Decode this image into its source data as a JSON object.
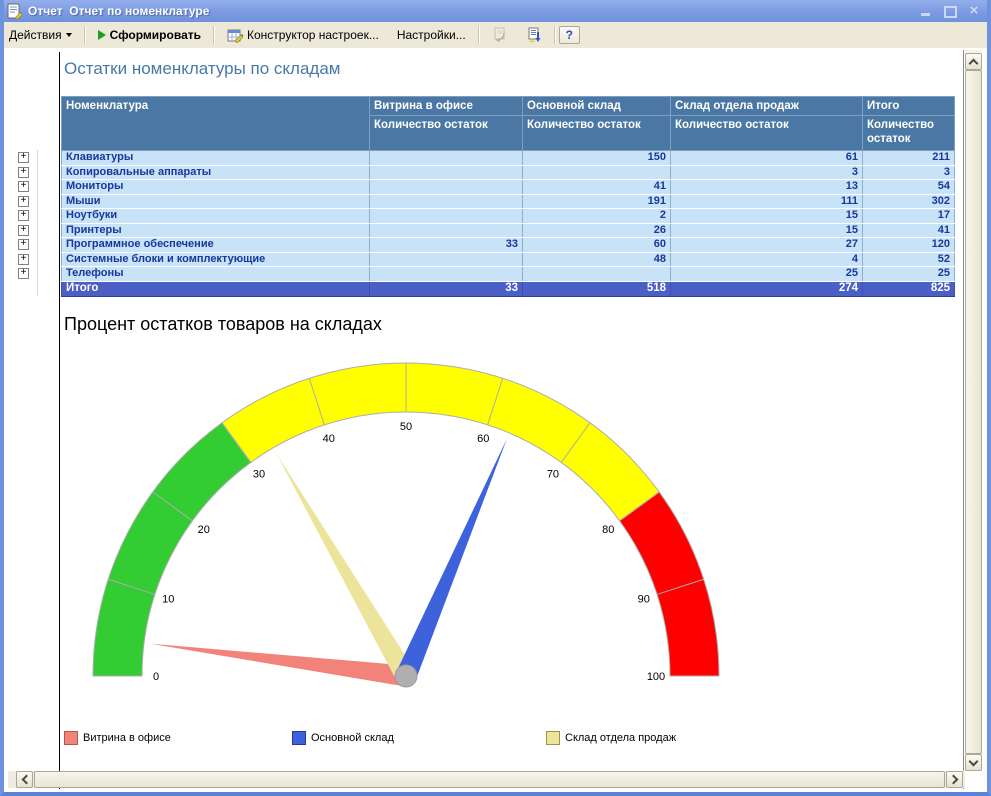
{
  "window": {
    "title": "Отчет  Отчет по номенклатуре"
  },
  "toolbar": {
    "actions_label": "Действия",
    "generate_label": "Сформировать",
    "constructor_label": "Конструктор настроек...",
    "settings_label": "Настройки...",
    "help_label": "?"
  },
  "report": {
    "table_title": "Остатки номенклатуры по складам",
    "columns": [
      "Номенклатура",
      "Витрина в офисе",
      "Основной склад",
      "Склад отдела продаж",
      "Итого"
    ],
    "measure_label": "Количество остаток",
    "rows": [
      {
        "name": "Клавиатуры",
        "cells": [
          "",
          "150",
          "61",
          "211"
        ]
      },
      {
        "name": "Копировальные аппараты",
        "cells": [
          "",
          "",
          "3",
          "3"
        ]
      },
      {
        "name": "Мониторы",
        "cells": [
          "",
          "41",
          "13",
          "54"
        ]
      },
      {
        "name": "Мыши",
        "cells": [
          "",
          "191",
          "111",
          "302"
        ]
      },
      {
        "name": "Ноутбуки",
        "cells": [
          "",
          "2",
          "15",
          "17"
        ]
      },
      {
        "name": "Принтеры",
        "cells": [
          "",
          "26",
          "15",
          "41"
        ]
      },
      {
        "name": "Программное обеспечение",
        "cells": [
          "33",
          "60",
          "27",
          "120"
        ]
      },
      {
        "name": "Системные блоки и комплектующие",
        "cells": [
          "",
          "48",
          "4",
          "52"
        ]
      },
      {
        "name": "Телефоны",
        "cells": [
          "",
          "",
          "25",
          "25"
        ]
      }
    ],
    "total": {
      "name": "Итого",
      "cells": [
        "33",
        "518",
        "274",
        "825"
      ]
    }
  },
  "chart_data": {
    "type": "gauge",
    "title": "Процент остатков товаров на складах",
    "min": 0,
    "max": 100,
    "tick_step": 10,
    "tick_labels": [
      "0",
      "10",
      "20",
      "30",
      "40",
      "50",
      "60",
      "70",
      "80",
      "90",
      "100"
    ],
    "zones": [
      {
        "from": 0,
        "to": 30,
        "color": "#33CC33"
      },
      {
        "from": 30,
        "to": 80,
        "color": "#FFFF00"
      },
      {
        "from": 80,
        "to": 100,
        "color": "#FF0000"
      }
    ],
    "series": [
      {
        "name": "Витрина в офисе",
        "value": 4,
        "color": "#F2837A"
      },
      {
        "name": "Основной склад",
        "value": 62.8,
        "color": "#3D62DC"
      },
      {
        "name": "Склад отдела продаж",
        "value": 33.2,
        "color": "#EDE49C"
      }
    ]
  },
  "legend": [
    {
      "label": "Витрина в офисе",
      "color": "#F2837A",
      "border": "#B3574C"
    },
    {
      "label": "Основной склад",
      "color": "#3D62DC",
      "border": "#24389C"
    },
    {
      "label": "Склад отдела продаж",
      "color": "#EDE49C",
      "border": "#9C9448"
    }
  ]
}
